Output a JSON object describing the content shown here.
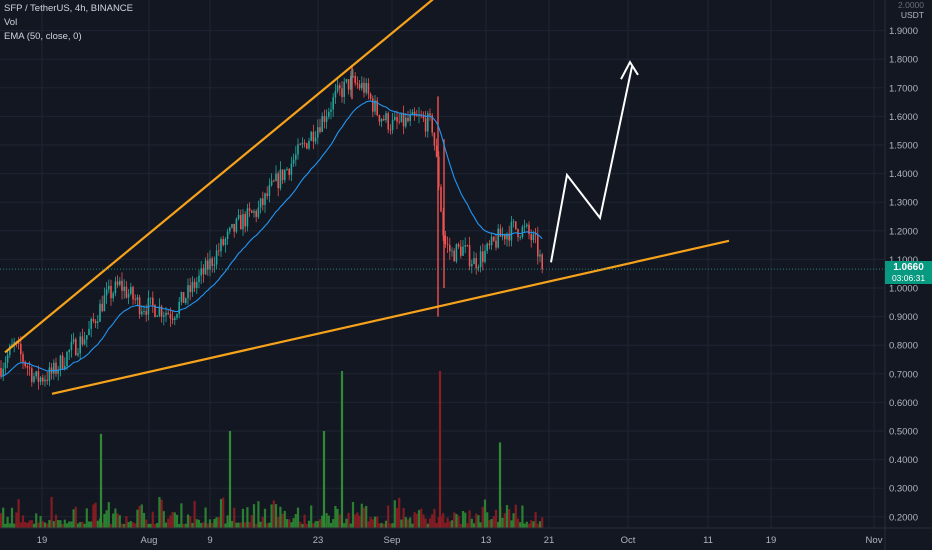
{
  "legend": {
    "symbol": "SFP / TetherUS, 4h, BINANCE",
    "vol": "Vol",
    "ema": "EMA (50, close, 0)"
  },
  "price_axis": {
    "currency_top": "2.0000",
    "currency": "USDT",
    "ticks": [
      "1.9000",
      "1.8000",
      "1.7000",
      "1.6000",
      "1.5000",
      "1.4000",
      "1.3000",
      "1.2000",
      "1.1000",
      "1.0000",
      "0.9000",
      "0.8000",
      "0.7000",
      "0.6000",
      "0.5000",
      "0.4000",
      "0.3000",
      "0.2000"
    ],
    "last_price": "1.0660",
    "countdown": "03:06:31"
  },
  "time_axis": {
    "labels": [
      "19",
      "Aug",
      "9",
      "23",
      "Sep",
      "13",
      "21",
      "Oct",
      "11",
      "19",
      "Nov"
    ]
  },
  "colors": {
    "background": "#131722",
    "grid": "#1f2433",
    "up": "#26a69a",
    "down": "#ef5350",
    "ema": "#2196f3",
    "trendline": "#f7a21b",
    "projection": "#ffffff",
    "last_price_tag": "#089981",
    "vol_up": "#2e8b33",
    "vol_down": "#8e1d22"
  },
  "chart_data": {
    "type": "candlestick",
    "ylim": [
      0.16,
      2.02
    ],
    "ema_period": 50,
    "anchors": [
      [
        0,
        0.72
      ],
      [
        14,
        0.8
      ],
      [
        36,
        0.68
      ],
      [
        52,
        0.7
      ],
      [
        70,
        0.78
      ],
      [
        88,
        0.84
      ],
      [
        104,
        0.96
      ],
      [
        120,
        1.01
      ],
      [
        140,
        0.94
      ],
      [
        158,
        0.93
      ],
      [
        172,
        0.91
      ],
      [
        188,
        0.98
      ],
      [
        205,
        1.06
      ],
      [
        222,
        1.15
      ],
      [
        240,
        1.23
      ],
      [
        258,
        1.27
      ],
      [
        274,
        1.36
      ],
      [
        292,
        1.44
      ],
      [
        308,
        1.52
      ],
      [
        322,
        1.59
      ],
      [
        336,
        1.67
      ],
      [
        350,
        1.72
      ],
      [
        364,
        1.7
      ],
      [
        378,
        1.61
      ],
      [
        392,
        1.57
      ],
      [
        406,
        1.58
      ],
      [
        420,
        1.59
      ],
      [
        432,
        1.57
      ],
      [
        438,
        1.4
      ],
      [
        444,
        1.16
      ],
      [
        452,
        1.12
      ],
      [
        462,
        1.14
      ],
      [
        474,
        1.09
      ],
      [
        488,
        1.13
      ],
      [
        500,
        1.18
      ],
      [
        514,
        1.21
      ],
      [
        526,
        1.2
      ],
      [
        536,
        1.15
      ],
      [
        543,
        1.066
      ]
    ],
    "trendlines": [
      {
        "x1": 5,
        "p1": 0.775,
        "x2": 447,
        "p2": 2.05
      },
      {
        "x1": 52,
        "p1": 0.63,
        "x2": 729,
        "p2": 1.165
      }
    ],
    "projection": [
      [
        551,
        1.09
      ],
      [
        567,
        1.395
      ],
      [
        600,
        1.245
      ],
      [
        632,
        1.775
      ]
    ],
    "projection_arrow_head": [
      [
        621,
        1.73
      ],
      [
        630,
        1.79
      ],
      [
        638,
        1.745
      ]
    ],
    "spikes": [
      {
        "x": 438,
        "low": 0.9,
        "high": 1.67
      },
      {
        "x": 444,
        "low": 1.0,
        "high": 1.52
      },
      {
        "x": 352,
        "low": 1.66,
        "high": 1.78
      }
    ],
    "volume_spikes": [
      {
        "x": 440,
        "h": 0.55,
        "down": true
      },
      {
        "x": 342,
        "h": 0.55,
        "down": false
      },
      {
        "x": 101,
        "h": 0.33,
        "down": false
      },
      {
        "x": 324,
        "h": 0.34,
        "down": false
      },
      {
        "x": 230,
        "h": 0.34,
        "down": false
      },
      {
        "x": 500,
        "h": 0.3,
        "down": false
      }
    ],
    "last_price": 1.066
  }
}
